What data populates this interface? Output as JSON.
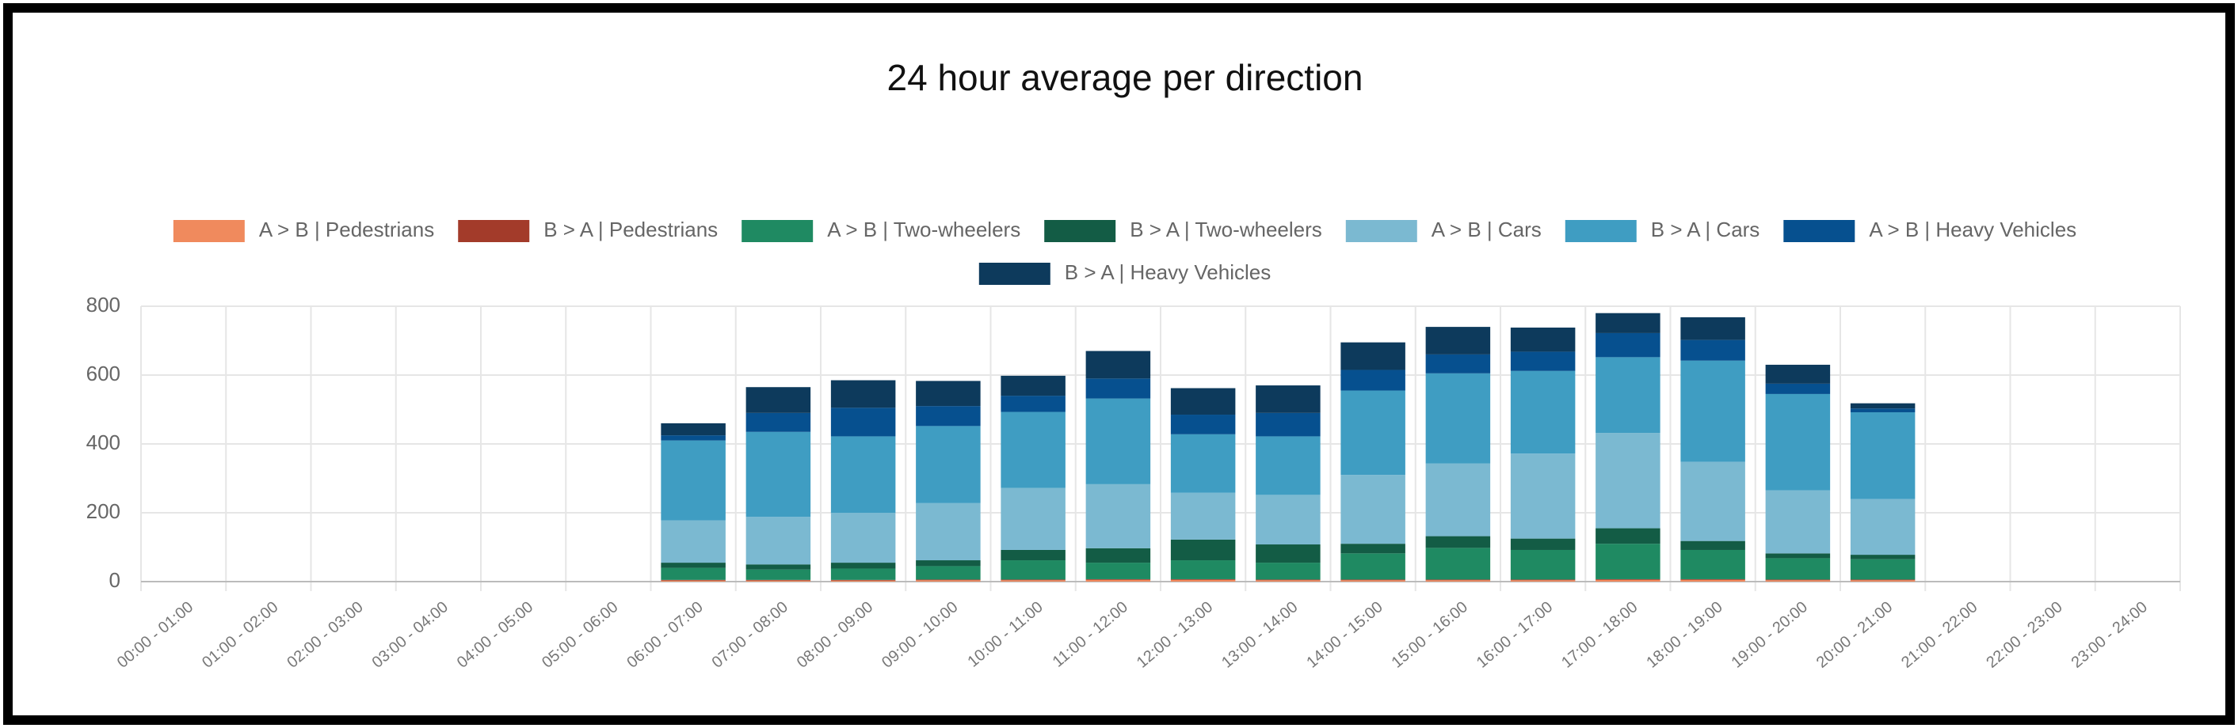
{
  "chart_data": {
    "type": "stacked-bar",
    "title": "24 hour average per direction",
    "categories": [
      "00:00 - 01:00",
      "01:00 - 02:00",
      "02:00 - 03:00",
      "03:00 - 04:00",
      "04:00 - 05:00",
      "05:00 - 06:00",
      "06:00 - 07:00",
      "07:00 - 08:00",
      "08:00 - 09:00",
      "09:00 - 10:00",
      "10:00 - 11:00",
      "11:00 - 12:00",
      "12:00 - 13:00",
      "13:00 - 14:00",
      "14:00 - 15:00",
      "15:00 - 16:00",
      "16:00 - 17:00",
      "17:00 - 18:00",
      "18:00 - 19:00",
      "19:00 - 20:00",
      "20:00 - 21:00",
      "21:00 - 22:00",
      "22:00 - 23:00",
      "23:00 - 24:00"
    ],
    "series": [
      {
        "name": "A > B | Pedestrians",
        "color": "#f08a5d",
        "values": [
          0,
          0,
          0,
          0,
          0,
          0,
          3,
          3,
          3,
          4,
          4,
          5,
          5,
          4,
          4,
          4,
          4,
          5,
          5,
          4,
          4,
          0,
          0,
          0
        ]
      },
      {
        "name": "B > A | Pedestrians",
        "color": "#a33b2a",
        "values": [
          0,
          0,
          0,
          0,
          0,
          0,
          2,
          2,
          2,
          2,
          2,
          2,
          2,
          2,
          2,
          2,
          2,
          2,
          2,
          2,
          2,
          0,
          0,
          0
        ]
      },
      {
        "name": "A > B | Two-wheelers",
        "color": "#1f8a62",
        "values": [
          0,
          0,
          0,
          0,
          0,
          0,
          35,
          30,
          33,
          39,
          56,
          48,
          55,
          49,
          76,
          92,
          86,
          103,
          85,
          62,
          59,
          0,
          0,
          0
        ]
      },
      {
        "name": "B > A | Two-wheelers",
        "color": "#135c45",
        "values": [
          0,
          0,
          0,
          0,
          0,
          0,
          15,
          15,
          17,
          17,
          30,
          42,
          60,
          53,
          28,
          34,
          33,
          45,
          26,
          14,
          13,
          0,
          0,
          0
        ]
      },
      {
        "name": "A > B | Cars",
        "color": "#7bb9d1",
        "values": [
          0,
          0,
          0,
          0,
          0,
          0,
          123,
          138,
          145,
          166,
          180,
          186,
          136,
          144,
          200,
          211,
          247,
          277,
          230,
          183,
          162,
          0,
          0,
          0
        ]
      },
      {
        "name": "B > A | Cars",
        "color": "#3f9dc2",
        "values": [
          0,
          0,
          0,
          0,
          0,
          0,
          232,
          247,
          222,
          224,
          221,
          249,
          170,
          170,
          245,
          262,
          240,
          220,
          294,
          280,
          252,
          0,
          0,
          0
        ]
      },
      {
        "name": "A > B | Heavy Vehicles",
        "color": "#06508f",
        "values": [
          0,
          0,
          0,
          0,
          0,
          0,
          15,
          55,
          83,
          58,
          47,
          58,
          57,
          68,
          60,
          55,
          56,
          70,
          60,
          30,
          11,
          0,
          0,
          0
        ]
      },
      {
        "name": "B > A | Heavy Vehicles",
        "color": "#0d3a5c",
        "values": [
          0,
          0,
          0,
          0,
          0,
          0,
          35,
          75,
          80,
          73,
          58,
          80,
          77,
          80,
          80,
          80,
          70,
          58,
          66,
          55,
          15,
          0,
          0,
          0
        ]
      }
    ],
    "ylim": [
      0,
      800
    ],
    "yticks": [
      0,
      200,
      400,
      600,
      800
    ],
    "grid": true
  }
}
